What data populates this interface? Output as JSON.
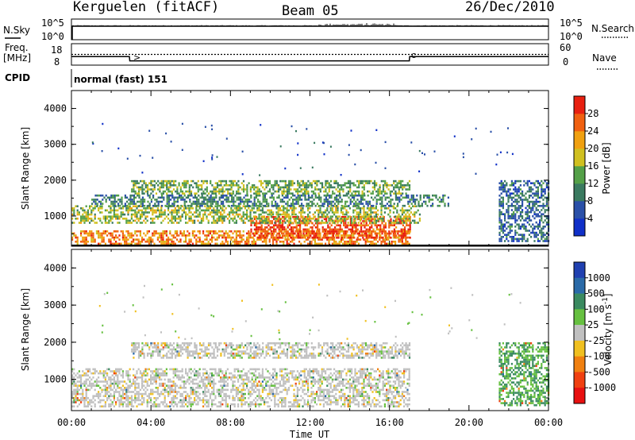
{
  "header": {
    "station": "Kerguelen (fitACF)",
    "beam": "Beam 05",
    "date": "26/Dec/2010"
  },
  "strip_labels": {
    "nsky": "N.Sky",
    "nsearch": "N.Search",
    "freq_line1": "Freq.",
    "freq_line2": "[MHz]",
    "nave": "Nave",
    "cpid": "CPID",
    "cpid_value": "normal (fast) 151",
    "left_ticks_noise": [
      "10^5",
      "10^0"
    ],
    "right_ticks_noise": [
      "10^5",
      "10^0"
    ],
    "left_ticks_freq": [
      "18",
      "8"
    ],
    "right_ticks_freq": [
      "60",
      "0"
    ]
  },
  "axes": {
    "x_label": "Time UT",
    "x_ticks": [
      "00:00",
      "04:00",
      "08:00",
      "12:00",
      "16:00",
      "20:00",
      "00:00"
    ],
    "y_label": "Slant Range [km]",
    "y_ticks": [
      "1000",
      "2000",
      "3000",
      "4000"
    ]
  },
  "colorbars": {
    "power": {
      "label": "Power [dB]",
      "ticks": [
        "4",
        "8",
        "12",
        "16",
        "20",
        "24",
        "28"
      ],
      "colors": [
        "#1030c8",
        "#2a50a8",
        "#3a7a60",
        "#54a048",
        "#d0c020",
        "#f0a010",
        "#f06010",
        "#e82010"
      ]
    },
    "velocity": {
      "label": "Velocity [m s^-1]",
      "ticks": [
        "1000",
        "500",
        "100",
        "25",
        "-25",
        "-100",
        "-500",
        "-1000"
      ],
      "colors": [
        "#2040b0",
        "#2a6aa8",
        "#3a8a60",
        "#66c040",
        "#c0c0c0",
        "#f0c020",
        "#f08010",
        "#f04010",
        "#e81010"
      ]
    }
  },
  "chart_data": [
    {
      "type": "line",
      "title": "",
      "series": [
        {
          "name": "N.Sky",
          "level": "10^5, near-constant"
        },
        {
          "name": "N.Search",
          "level": "10^5, near-constant"
        }
      ]
    },
    {
      "type": "line",
      "title": "",
      "series": [
        {
          "name": "Freq.",
          "x": [
            "00:00",
            "02:55",
            "02:56",
            "17:00",
            "17:01",
            "24:00"
          ],
          "y": [
            12.0,
            12.0,
            10.0,
            10.0,
            12.0,
            12.0
          ]
        },
        {
          "name": "Nave",
          "x": [
            "00:00",
            "24:00"
          ],
          "y": [
            30,
            30
          ]
        }
      ],
      "xlim": [
        "00:00",
        "24:00"
      ]
    },
    {
      "type": "heatmap",
      "title": "",
      "quantity": "Power [dB]",
      "xlim": [
        "00:00",
        "24:00"
      ],
      "ylim": [
        180,
        4500
      ],
      "bands": [
        {
          "t_start": "00:00",
          "t_end": "17:00",
          "range_min": 250,
          "range_max": 600,
          "level_db": 24
        },
        {
          "t_start": "09:00",
          "t_end": "17:00",
          "range_min": 400,
          "range_max": 1000,
          "level_db": 28
        },
        {
          "t_start": "00:00",
          "t_end": "17:30",
          "range_min": 800,
          "range_max": 1300,
          "level_db": 16
        },
        {
          "t_start": "01:00",
          "t_end": "19:00",
          "range_min": 1300,
          "range_max": 1600,
          "level_db": 10
        },
        {
          "t_start": "03:00",
          "t_end": "17:00",
          "range_min": 1600,
          "range_max": 2000,
          "level_db": 14
        },
        {
          "t_start": "21:30",
          "t_end": "24:00",
          "range_min": 300,
          "range_max": 2000,
          "level_db": 8
        }
      ]
    },
    {
      "type": "heatmap",
      "title": "",
      "quantity": "Velocity [m s^-1]",
      "xlim": [
        "00:00",
        "24:00"
      ],
      "ylim": [
        180,
        4500
      ],
      "bands": [
        {
          "t_start": "00:00",
          "t_end": "17:00",
          "range_min": 250,
          "range_max": 1300,
          "level_ms": 0
        },
        {
          "t_start": "03:00",
          "t_end": "17:00",
          "range_min": 1600,
          "range_max": 2000,
          "level_ms": 0
        },
        {
          "t_start": "21:30",
          "t_end": "24:00",
          "range_min": 300,
          "range_max": 2000,
          "level_ms": 100
        }
      ]
    }
  ]
}
